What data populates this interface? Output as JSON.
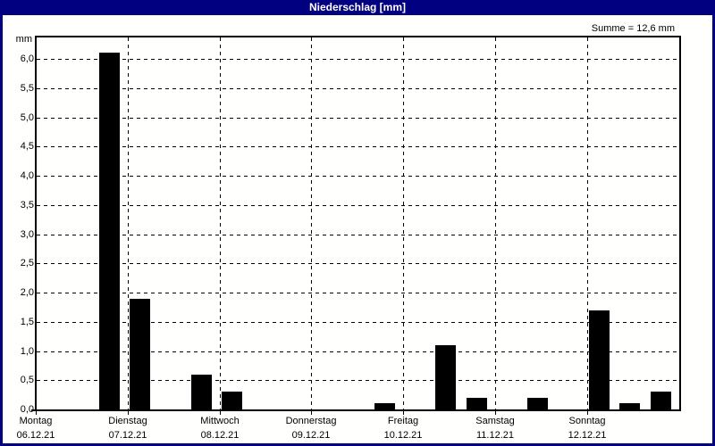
{
  "window": {
    "title": "Niederschlag [mm]"
  },
  "chart_data": {
    "type": "bar",
    "title": "Niederschlag [mm]",
    "ylabel": "mm",
    "xlabel": "",
    "sum_label": "Summe = 12,6 mm",
    "sum_value_mm": 12.6,
    "ylim": [
      0,
      6.4
    ],
    "ytick_step": 0.5,
    "grid": "dashed",
    "legend": "none",
    "yticks": [
      {
        "v": 0.0,
        "label": "0,0"
      },
      {
        "v": 0.5,
        "label": "0,5"
      },
      {
        "v": 1.0,
        "label": "1,0"
      },
      {
        "v": 1.5,
        "label": "1,5"
      },
      {
        "v": 2.0,
        "label": "2,0"
      },
      {
        "v": 2.5,
        "label": "2,5"
      },
      {
        "v": 3.0,
        "label": "3,0"
      },
      {
        "v": 3.5,
        "label": "3,5"
      },
      {
        "v": 4.0,
        "label": "4,0"
      },
      {
        "v": 4.5,
        "label": "4,5"
      },
      {
        "v": 5.0,
        "label": "5,0"
      },
      {
        "v": 5.5,
        "label": "5,5"
      },
      {
        "v": 6.0,
        "label": "6,0"
      }
    ],
    "days": [
      {
        "name": "Montag",
        "date": "06.12.21"
      },
      {
        "name": "Dienstag",
        "date": "07.12.21"
      },
      {
        "name": "Mittwoch",
        "date": "08.12.21"
      },
      {
        "name": "Donnerstag",
        "date": "09.12.21"
      },
      {
        "name": "Freitag",
        "date": "10.12.21"
      },
      {
        "name": "Samstag",
        "date": "11.12.21"
      },
      {
        "name": "Sonntag",
        "date": "12.12.21"
      }
    ],
    "bars": [
      {
        "day_index": 0,
        "date": "06.12.21",
        "slot": 2,
        "value_mm": 6.1
      },
      {
        "day_index": 1,
        "date": "07.12.21",
        "slot": 0,
        "value_mm": 1.9
      },
      {
        "day_index": 1,
        "date": "07.12.21",
        "slot": 2,
        "value_mm": 0.6
      },
      {
        "day_index": 2,
        "date": "08.12.21",
        "slot": 0,
        "value_mm": 0.3
      },
      {
        "day_index": 3,
        "date": "09.12.21",
        "slot": 2,
        "value_mm": 0.1
      },
      {
        "day_index": 4,
        "date": "10.12.21",
        "slot": 1,
        "value_mm": 1.1
      },
      {
        "day_index": 4,
        "date": "10.12.21",
        "slot": 2,
        "value_mm": 0.2
      },
      {
        "day_index": 5,
        "date": "11.12.21",
        "slot": 1,
        "value_mm": 0.2
      },
      {
        "day_index": 6,
        "date": "12.12.21",
        "slot": 0,
        "value_mm": 1.7
      },
      {
        "day_index": 6,
        "date": "12.12.21",
        "slot": 1,
        "value_mm": 0.1
      },
      {
        "day_index": 6,
        "date": "12.12.21",
        "slot": 2,
        "value_mm": 0.3
      }
    ],
    "colors": {
      "bar": "#000000",
      "titlebar_bg": "#000080",
      "titlebar_text": "#ffffff",
      "plot_background": "#fffffd",
      "frame": "#000000"
    }
  }
}
